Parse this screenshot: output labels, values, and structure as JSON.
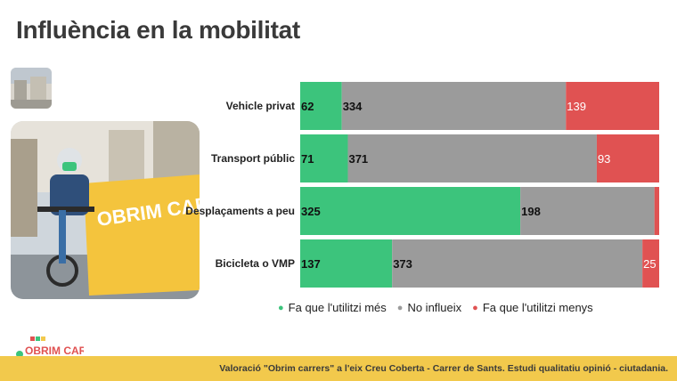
{
  "title": "Influència en la mobilitat",
  "colors": {
    "green": "#3cc47c",
    "gray": "#9b9b9b",
    "red": "#e05252",
    "footer": "#f2c94c"
  },
  "photo": {
    "sign_text": "OBRIM CARRERS"
  },
  "logo": {
    "text": "OBRIM CARRERS"
  },
  "chart_data": {
    "type": "bar",
    "orientation": "horizontal",
    "stacked": true,
    "categories": [
      "Vehicle privat",
      "Transport públic",
      "Desplaçaments a peu",
      "Bicicleta o VMP"
    ],
    "series": [
      {
        "name": "Fa que l'utilitzi més",
        "values": [
          62,
          71,
          325,
          137
        ],
        "labels": [
          "62",
          "71",
          "325",
          "137"
        ]
      },
      {
        "name": "No influeix",
        "values": [
          334,
          371,
          198,
          373
        ],
        "labels": [
          "334",
          "371",
          "198",
          "373"
        ]
      },
      {
        "name": "Fa que l'utilitzi menys",
        "values": [
          139,
          93,
          7,
          25
        ],
        "labels": [
          "139",
          "93",
          "",
          "25"
        ]
      }
    ],
    "legend_position": "bottom"
  },
  "footer": {
    "text": "Valoració \"Obrim carrers\" a l'eix Creu Coberta - Carrer de Sants. Estudi qualitatiu opinió - ciutadania."
  }
}
